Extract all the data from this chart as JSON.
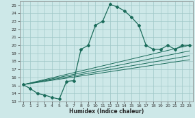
{
  "title": "",
  "xlabel": "Humidex (Indice chaleur)",
  "bg_color": "#cde8e8",
  "grid_color": "#a0c8c8",
  "line_color": "#1a6b5a",
  "xlim": [
    -0.5,
    23.5
  ],
  "ylim": [
    13,
    25.5
  ],
  "xticks": [
    0,
    1,
    2,
    3,
    4,
    5,
    6,
    7,
    8,
    9,
    10,
    11,
    12,
    13,
    14,
    15,
    16,
    17,
    18,
    19,
    20,
    21,
    22,
    23
  ],
  "yticks": [
    13,
    14,
    15,
    16,
    17,
    18,
    19,
    20,
    21,
    22,
    23,
    24,
    25
  ],
  "curve1_x": [
    0,
    1,
    2,
    3,
    4,
    5,
    6,
    7,
    8,
    9,
    10,
    11,
    12,
    13,
    14,
    15,
    16,
    17,
    18,
    19,
    20,
    21,
    22,
    23
  ],
  "curve1_y": [
    15.1,
    14.6,
    14.0,
    13.8,
    13.5,
    13.3,
    15.5,
    15.6,
    19.5,
    20.0,
    22.5,
    23.0,
    25.1,
    24.8,
    24.3,
    23.5,
    22.5,
    20.0,
    19.5,
    19.5,
    20.0,
    19.5,
    20.0,
    20.0
  ],
  "line2_x": [
    0,
    23
  ],
  "line2_y": [
    15.1,
    20.0
  ],
  "line3_x": [
    0,
    23
  ],
  "line3_y": [
    15.1,
    19.3
  ],
  "line4_x": [
    0,
    23
  ],
  "line4_y": [
    15.1,
    18.7
  ],
  "line5_x": [
    0,
    23
  ],
  "line5_y": [
    15.1,
    18.2
  ]
}
